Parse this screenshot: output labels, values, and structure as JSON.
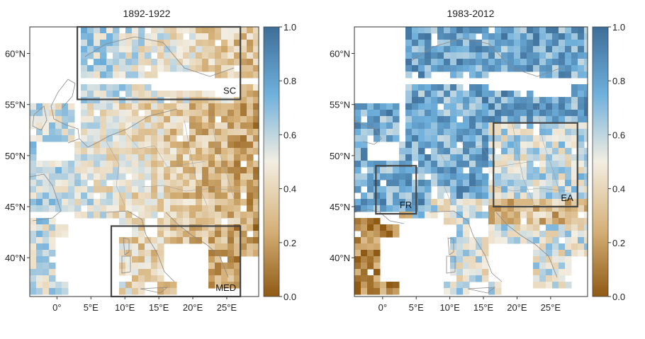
{
  "panels": [
    {
      "title": "1892-1922",
      "lat_labels": [
        "60°N",
        "55°N",
        "50°N",
        "45°N",
        "40°N"
      ],
      "lon_labels": [
        "0°",
        "5°E",
        "10°E",
        "15°E",
        "20°E",
        "25°E"
      ],
      "regions": [
        {
          "label": "SC",
          "lon": [
            3,
            27
          ],
          "lat": [
            55.5,
            62.6
          ]
        },
        {
          "label": "MED",
          "lon": [
            8,
            27
          ],
          "lat": [
            36.2,
            43.1
          ]
        }
      ],
      "colorbar": {
        "ticks": [
          "1.0",
          "0.8",
          "0.6",
          "0.4",
          "0.2",
          "0.0"
        ]
      }
    },
    {
      "title": "1983-2012",
      "lat_labels": [
        "60°N",
        "55°N",
        "50°N",
        "45°N",
        "40°N"
      ],
      "lon_labels": [
        "0°",
        "5°E",
        "10°E",
        "15°E",
        "20°E",
        "25°E"
      ],
      "regions": [
        {
          "label": "FR",
          "lon": [
            -1,
            5
          ],
          "lat": [
            44.3,
            49
          ]
        },
        {
          "label": "EA",
          "lon": [
            16.5,
            29
          ],
          "lat": [
            45,
            53.2
          ]
        }
      ],
      "colorbar": {
        "ticks": [
          "1.0",
          "0.8",
          "0.6",
          "0.4",
          "0.2",
          "0.0"
        ]
      }
    }
  ],
  "colors": {
    "high": "#3d6e98",
    "mid_high": "#6fb0dc",
    "mid": "#f3eee2",
    "mid_low": "#d6b27a",
    "low": "#8f5a13",
    "land_outline": "#888888",
    "region_box": "#444444"
  }
}
